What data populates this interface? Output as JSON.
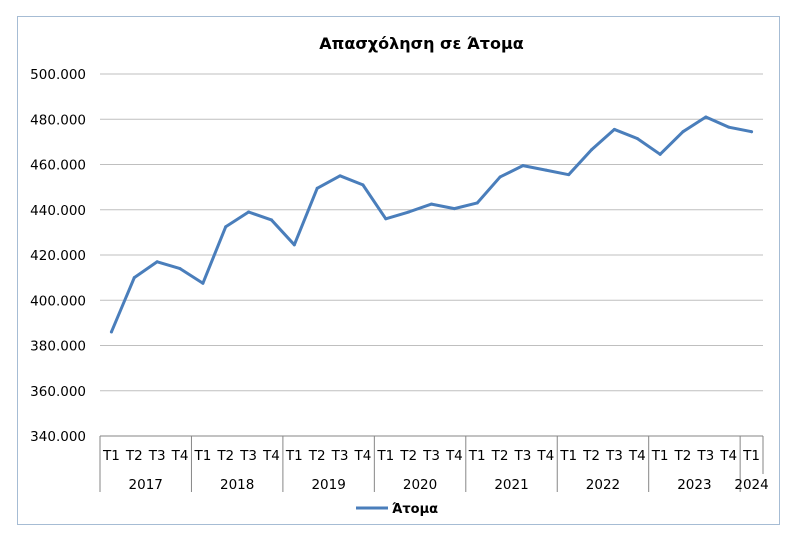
{
  "chart_data": {
    "type": "line",
    "title": "Απασχόληση σε Άτομα",
    "xlabel": "",
    "ylabel": "",
    "ylim": [
      340000,
      500000
    ],
    "y_ticks": [
      340000,
      360000,
      380000,
      400000,
      420000,
      440000,
      460000,
      480000,
      500000
    ],
    "y_tick_labels": [
      "340.000",
      "360.000",
      "380.000",
      "400.000",
      "420.000",
      "440.000",
      "460.000",
      "480.000",
      "500.000"
    ],
    "grid": true,
    "legend_position": "bottom",
    "series_color": "#4a7ebb",
    "categories": [
      "Τ1",
      "Τ2",
      "Τ3",
      "Τ4",
      "Τ1",
      "Τ2",
      "Τ3",
      "Τ4",
      "Τ1",
      "Τ2",
      "Τ3",
      "Τ4",
      "Τ1",
      "Τ2",
      "Τ3",
      "Τ4",
      "Τ1",
      "Τ2",
      "Τ3",
      "Τ4",
      "Τ1",
      "Τ2",
      "Τ3",
      "Τ4",
      "Τ1",
      "Τ2",
      "Τ3",
      "Τ4",
      "Τ1"
    ],
    "years": [
      {
        "label": "2017",
        "count": 4
      },
      {
        "label": "2018",
        "count": 4
      },
      {
        "label": "2019",
        "count": 4
      },
      {
        "label": "2020",
        "count": 4
      },
      {
        "label": "2021",
        "count": 4
      },
      {
        "label": "2022",
        "count": 4
      },
      {
        "label": "2023",
        "count": 4
      },
      {
        "label": "2024",
        "count": 1
      }
    ],
    "series": [
      {
        "name": "Άτομα",
        "values": [
          386000,
          410000,
          417000,
          414000,
          407500,
          432500,
          439000,
          435500,
          424500,
          449500,
          455000,
          451000,
          436000,
          439000,
          442500,
          440500,
          443000,
          454500,
          459500,
          457500,
          455500,
          466500,
          475500,
          471500,
          464500,
          474500,
          481000,
          476500,
          474500
        ]
      }
    ]
  }
}
